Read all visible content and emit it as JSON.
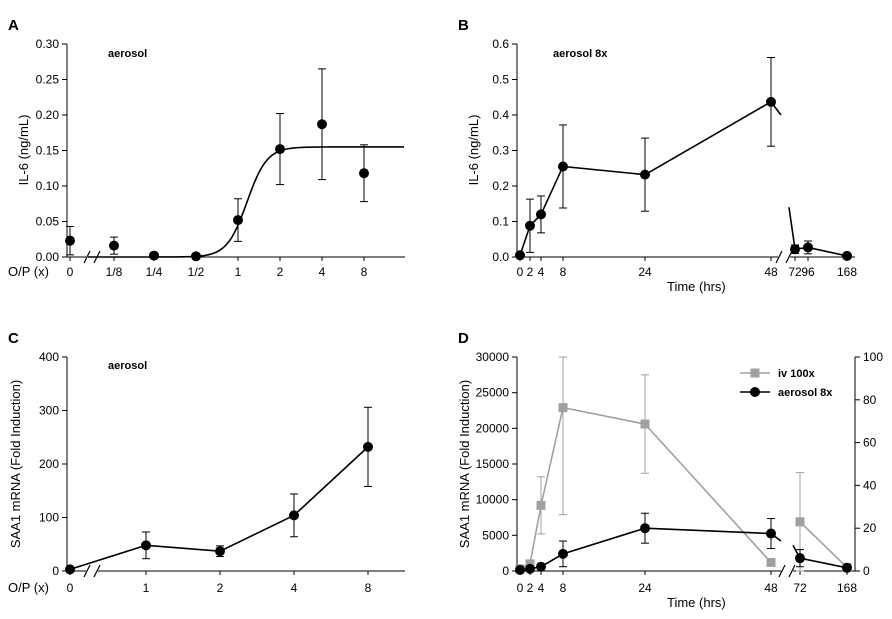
{
  "chart_data": [
    {
      "panel": "A",
      "type": "scatter",
      "annotation": "aerosol",
      "ylabel": "IL-6 (ng/mL)",
      "xlabel": "O/P (x)",
      "categories": [
        "0",
        "1/8",
        "1/4",
        "1/2",
        "1",
        "2",
        "4",
        "8"
      ],
      "yticks": [
        "0.00",
        "0.05",
        "0.10",
        "0.15",
        "0.20",
        "0.25",
        "0.30"
      ],
      "ylim": [
        0,
        0.3
      ],
      "series": [
        {
          "name": "aerosol",
          "values": [
            0.023,
            0.016,
            0.002,
            0.001,
            0.052,
            0.152,
            0.187,
            0.118
          ],
          "err": [
            0.02,
            0.012,
            0.001,
            0.001,
            0.03,
            0.05,
            0.078,
            0.04
          ]
        }
      ],
      "fit": "sigmoid (plateau ~0.155)"
    },
    {
      "panel": "B",
      "type": "line",
      "annotation": "aerosol 8x",
      "ylabel": "IL-6 (ng/mL)",
      "xlabel": "Time (hrs)",
      "xticks": [
        "0",
        "2",
        "4",
        "8",
        "24",
        "48",
        "72",
        "96",
        "168"
      ],
      "yticks": [
        "0.0",
        "0.1",
        "0.2",
        "0.3",
        "0.4",
        "0.5",
        "0.6"
      ],
      "ylim": [
        0,
        0.6
      ],
      "series": [
        {
          "name": "aerosol 8x",
          "x": [
            0,
            2,
            4,
            8,
            24,
            48,
            72,
            96,
            168
          ],
          "values": [
            0.005,
            0.088,
            0.12,
            0.255,
            0.232,
            0.437,
            0.022,
            0.027,
            0.003
          ],
          "err": [
            0.004,
            0.075,
            0.052,
            0.117,
            0.103,
            0.125,
            0.012,
            0.018,
            0.002
          ]
        }
      ]
    },
    {
      "panel": "C",
      "type": "line",
      "annotation": "aerosol",
      "ylabel": "SAA1 mRNA (Fold Induction)",
      "xlabel": "O/P (x)",
      "xticks": [
        "0",
        "1",
        "2",
        "4",
        "8"
      ],
      "yticks": [
        "0",
        "100",
        "200",
        "300",
        "400"
      ],
      "ylim": [
        0,
        400
      ],
      "series": [
        {
          "name": "aerosol",
          "x": [
            0,
            1,
            2,
            4,
            8
          ],
          "values": [
            3,
            48,
            37,
            104,
            232
          ],
          "err": [
            2,
            25,
            10,
            40,
            74
          ]
        }
      ]
    },
    {
      "panel": "D",
      "type": "line",
      "ylabel": "SAA1 mRNA (Fold Induction)",
      "xlabel": "Time (hrs)",
      "xticks": [
        "0",
        "2",
        "4",
        "8",
        "24",
        "48",
        "72",
        "168"
      ],
      "yticks_left": [
        "0",
        "5000",
        "10000",
        "15000",
        "20000",
        "25000",
        "30000"
      ],
      "yticks_right": [
        "0",
        "20",
        "40",
        "60",
        "80",
        "100"
      ],
      "ylim_left": [
        0,
        30000
      ],
      "ylim_right": [
        0,
        100
      ],
      "legend": [
        "iv 100x",
        "aerosol 8x"
      ],
      "series": [
        {
          "name": "iv 100x",
          "axis": "left",
          "color": "#a0a0a0",
          "x": [
            0,
            2,
            4,
            8,
            24,
            48,
            72,
            168
          ],
          "values": [
            300,
            1000,
            9200,
            22900,
            20600,
            1200,
            6900,
            500
          ],
          "err": [
            200,
            500,
            4000,
            15000,
            6900,
            400,
            6900,
            300
          ]
        },
        {
          "name": "aerosol 8x",
          "axis": "right",
          "color": "#000000",
          "x": [
            0,
            2,
            4,
            8,
            24,
            48,
            72,
            168
          ],
          "values": [
            0.5,
            1,
            2,
            8,
            20,
            17.5,
            6,
            1.5
          ],
          "err": [
            0.5,
            0.5,
            1,
            6,
            7,
            7,
            4,
            1
          ]
        }
      ]
    }
  ]
}
